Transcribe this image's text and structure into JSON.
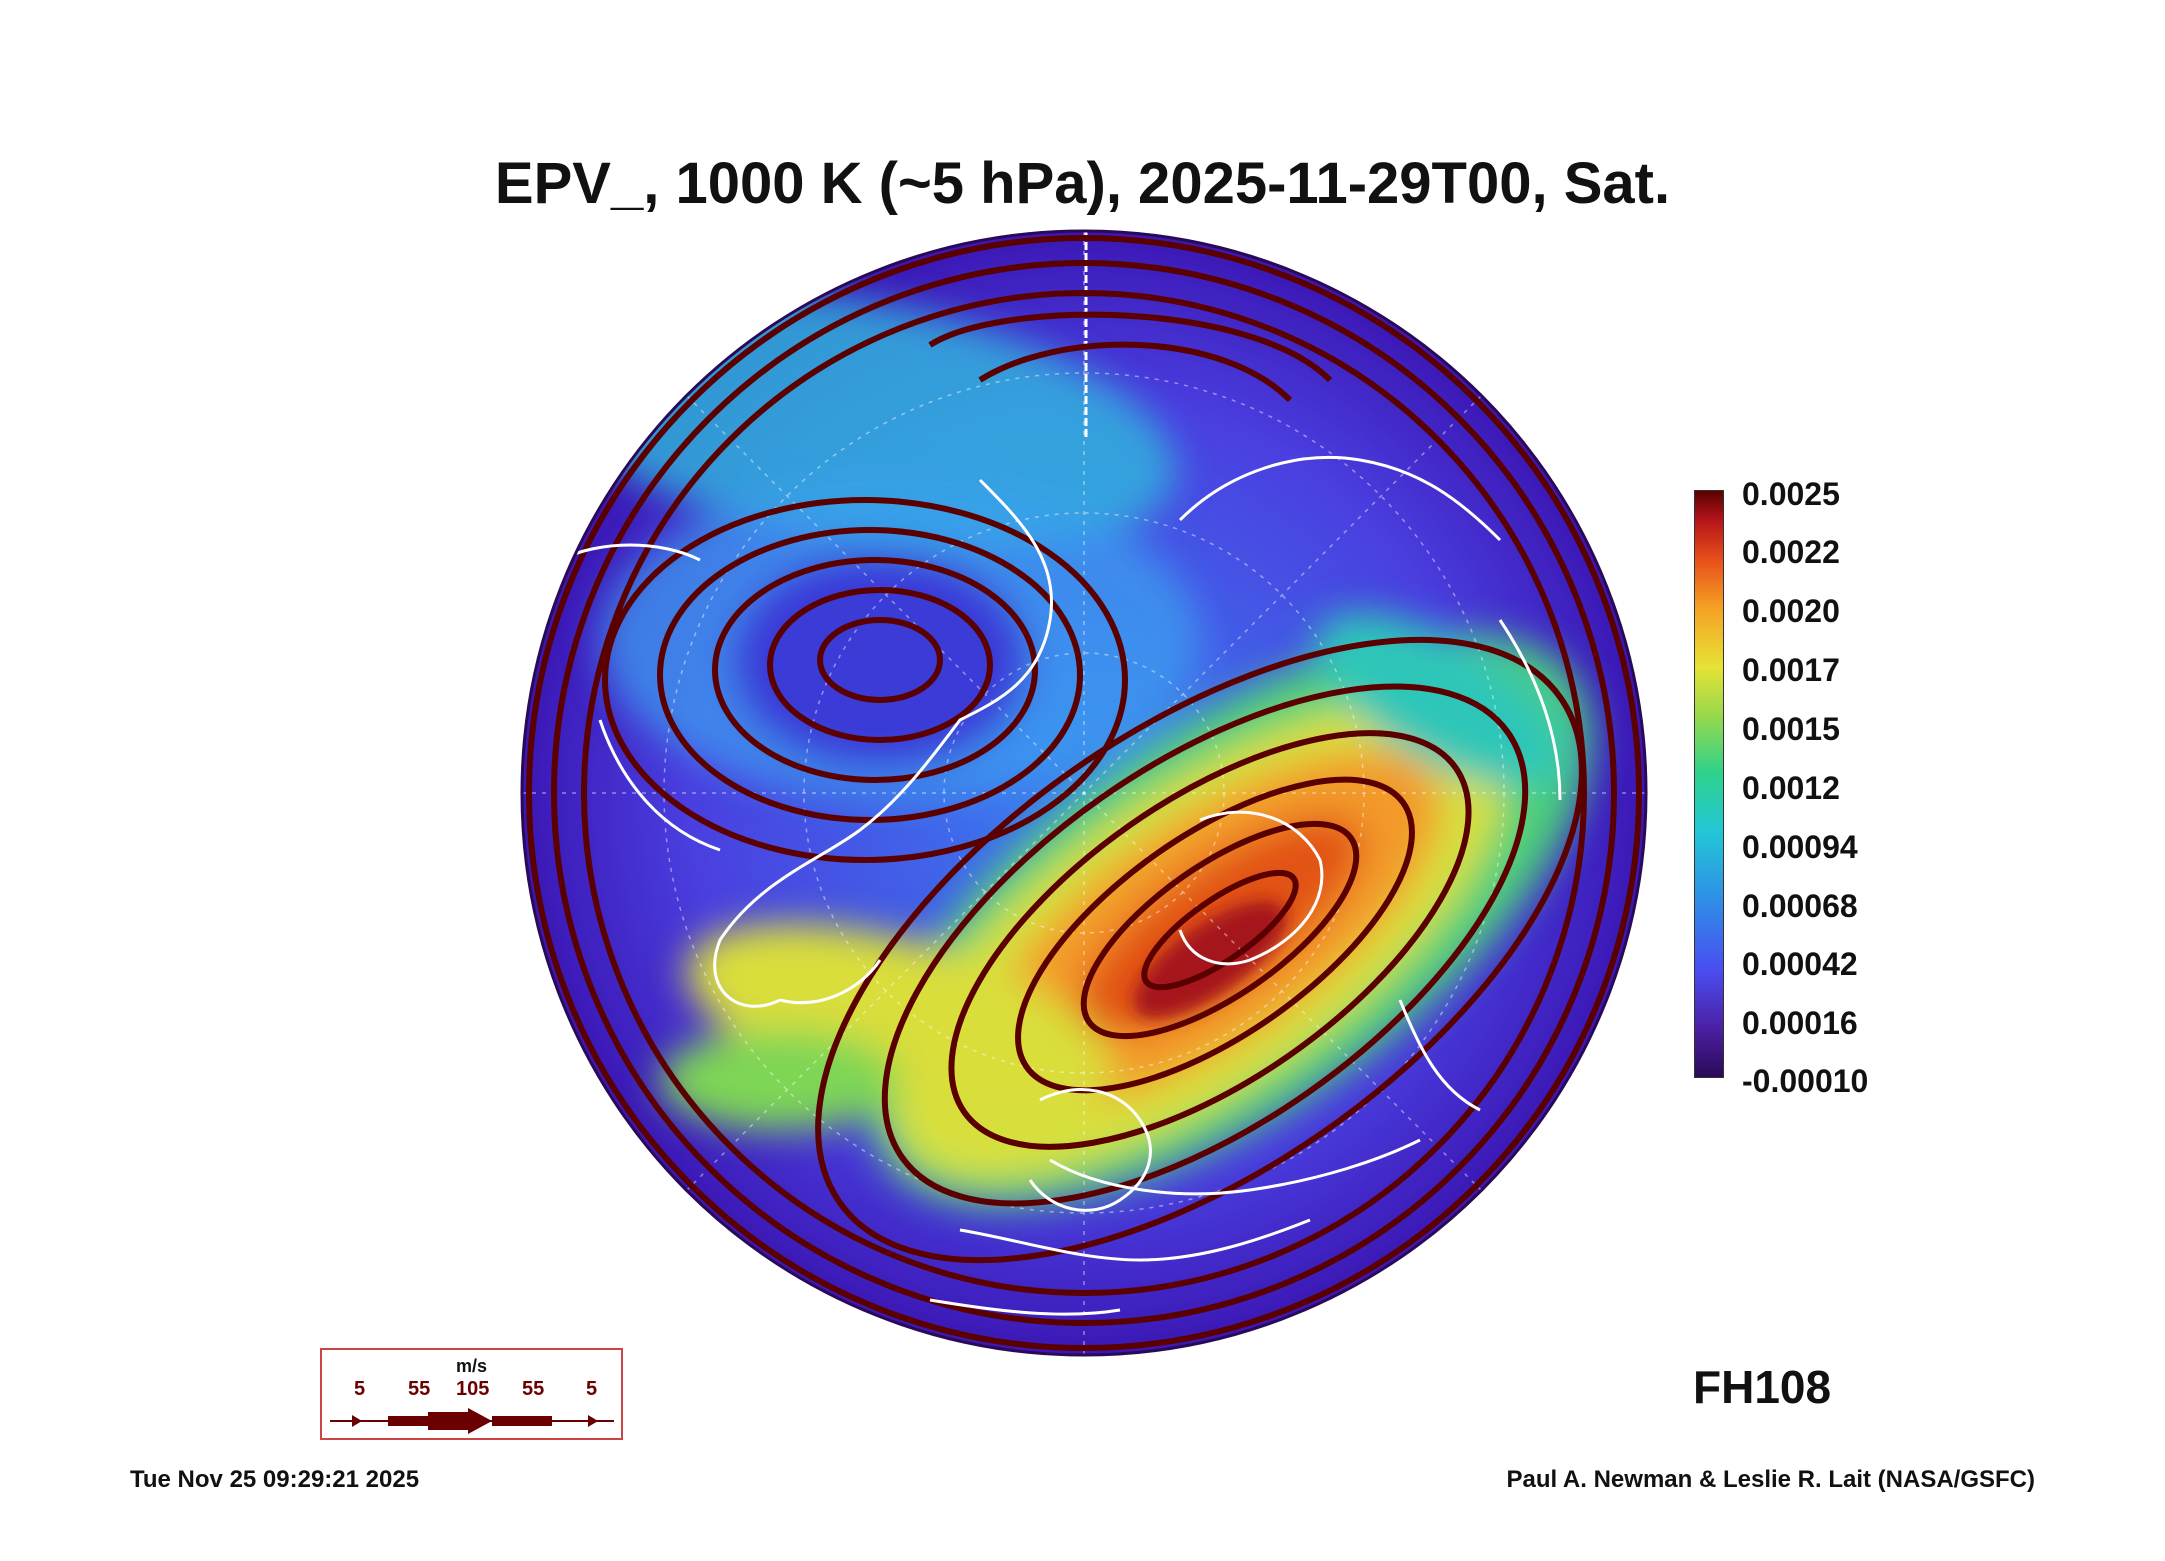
{
  "title": "EPV_, 1000 K (~5 hPa), 2025-11-29T00, Sat.",
  "colorbar": {
    "labels": [
      "0.0025",
      "0.0022",
      "0.0020",
      "0.0017",
      "0.0015",
      "0.0012",
      "0.00094",
      "0.00068",
      "0.00042",
      "0.00016",
      "-0.00010"
    ],
    "colors": [
      "#5a0000",
      "#b5141a",
      "#e8521a",
      "#f5a124",
      "#e6e236",
      "#9bd94a",
      "#2fd28a",
      "#22c7d6",
      "#2f8de8",
      "#4a4cf0",
      "#2a0a57"
    ]
  },
  "forecast_hour": "FH108",
  "wind_legend": {
    "units": "m/s",
    "values": [
      "5",
      "55",
      "105",
      "55",
      "5"
    ]
  },
  "footer": {
    "timestamp": "Tue Nov 25 09:29:21 2025",
    "credit": "Paul A. Newman & Leslie R. Lait (NASA/GSFC)"
  },
  "map": {
    "projection": "north-polar orthographic",
    "streamline_color": "#5a0000",
    "coastline_color": "#ffffff",
    "field": "EPV_",
    "background_color": "#4b22c8"
  }
}
